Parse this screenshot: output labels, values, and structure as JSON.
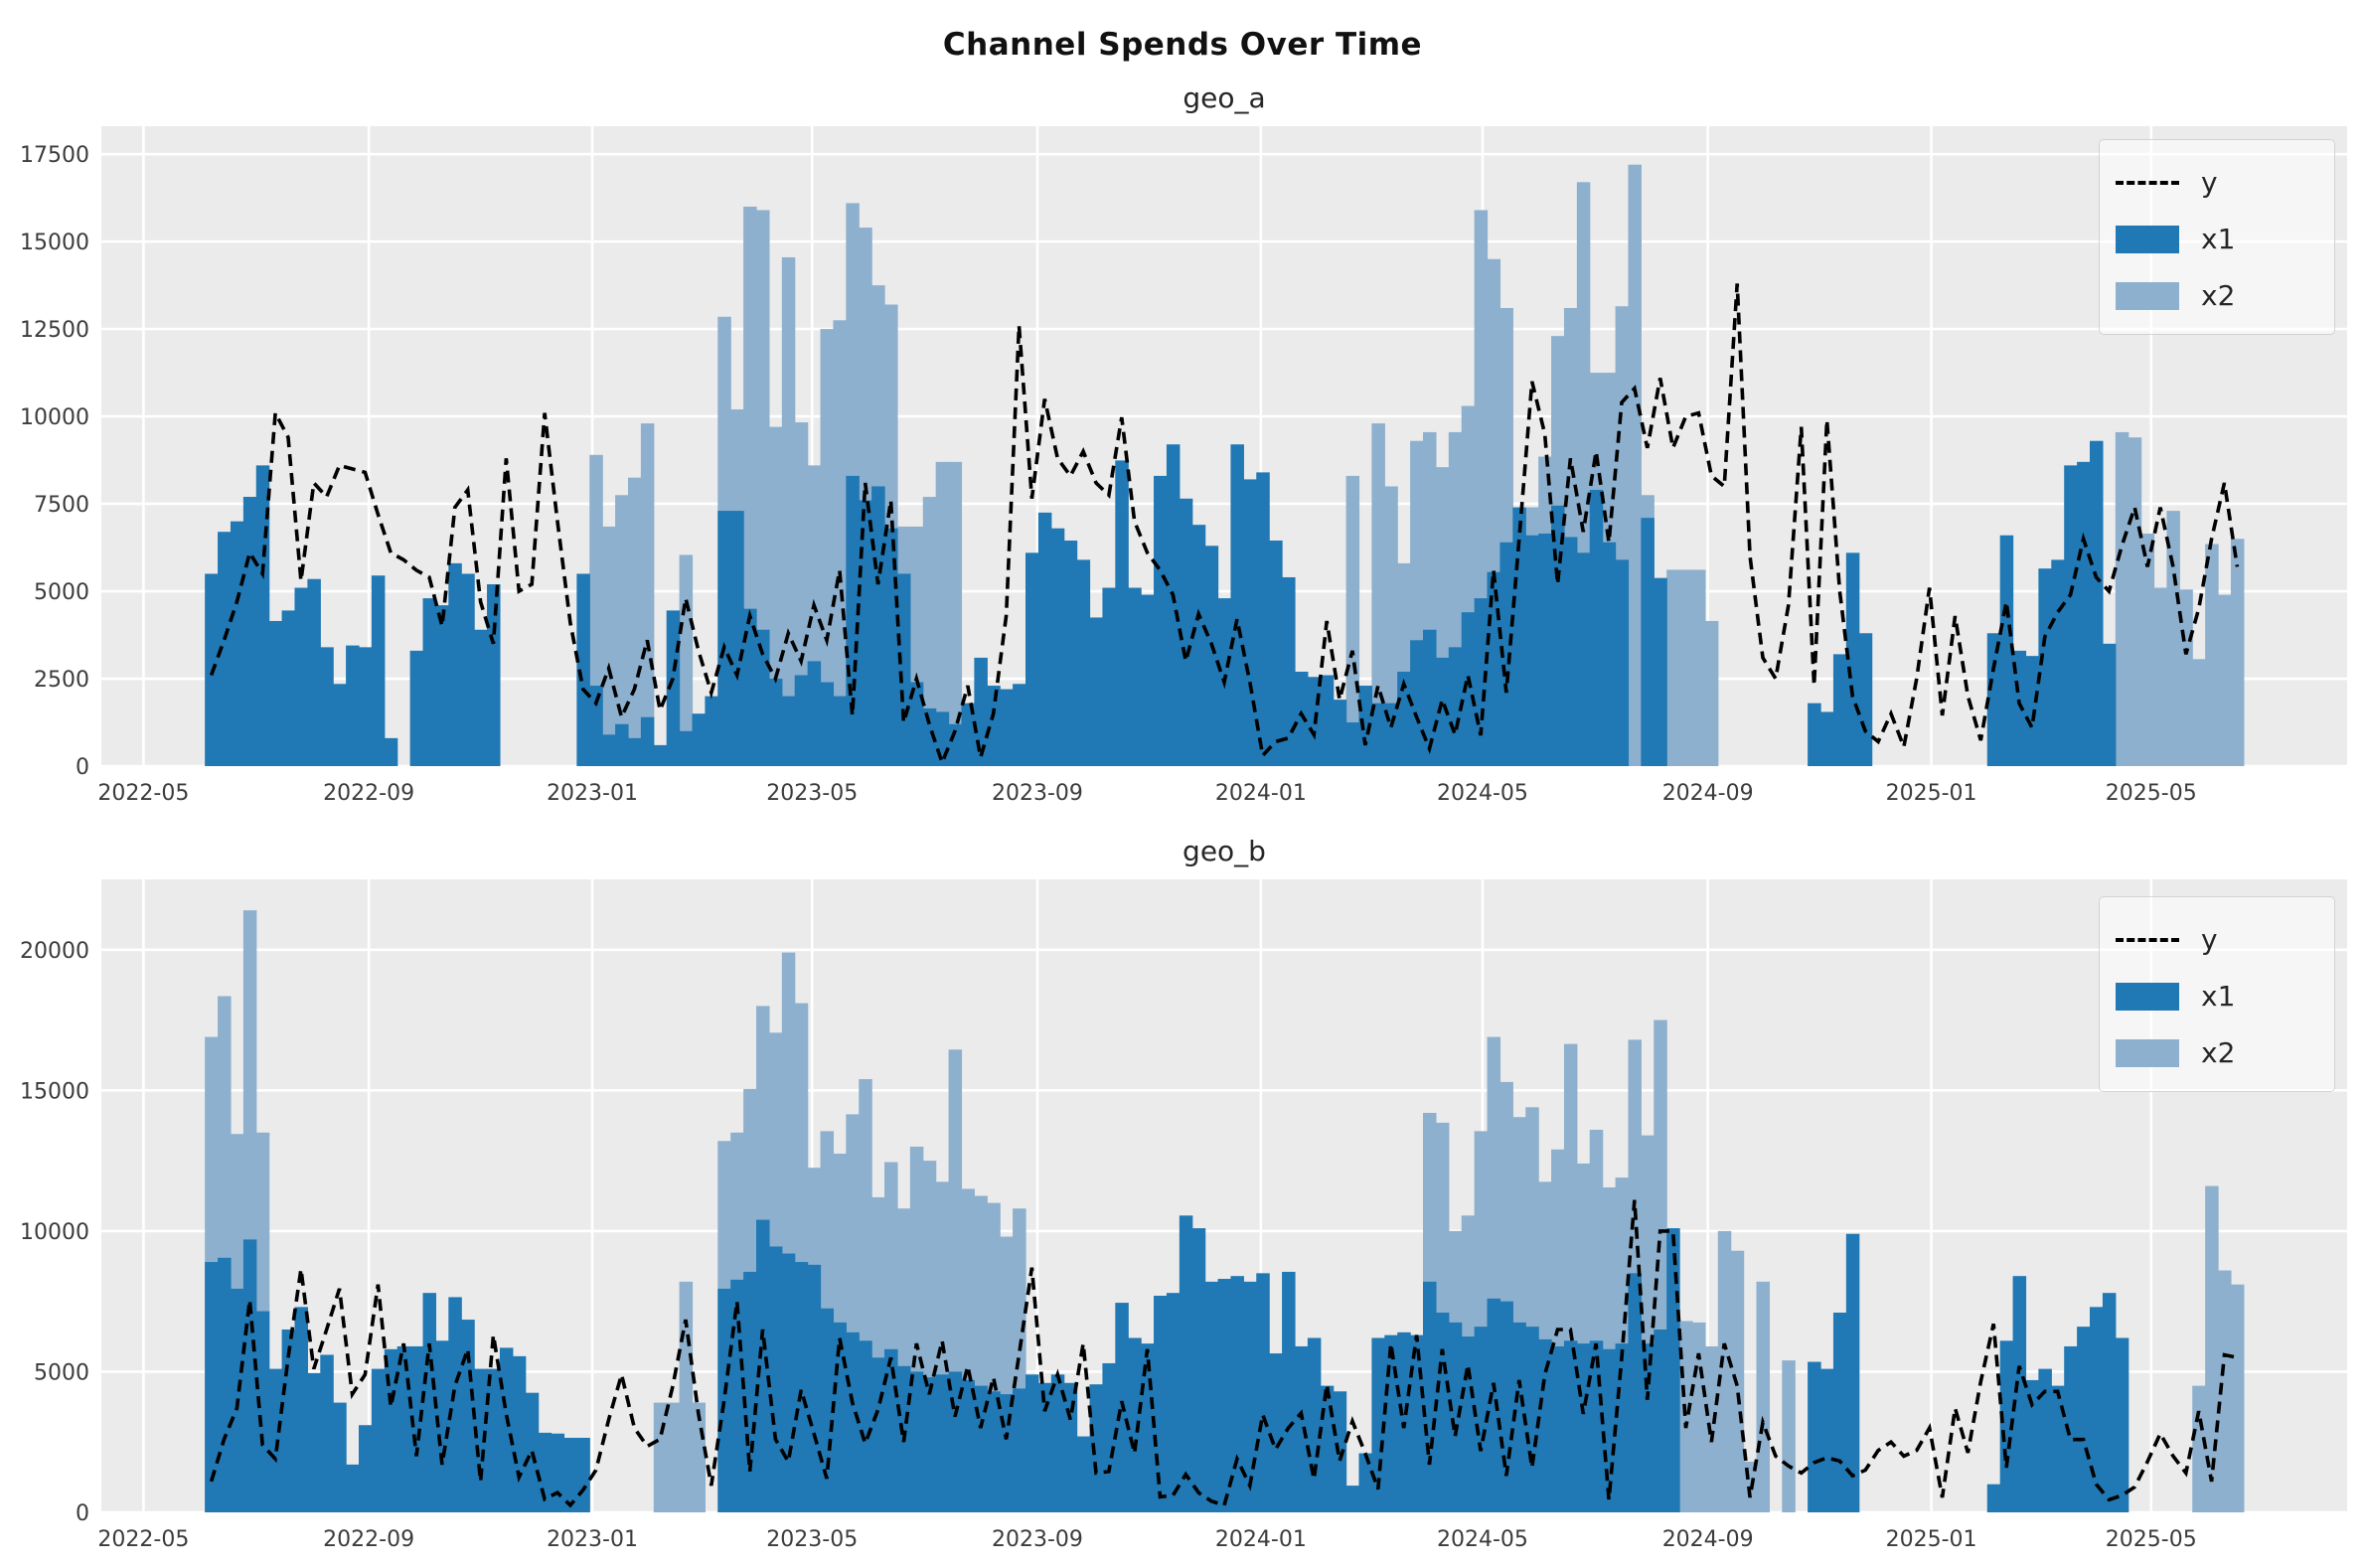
{
  "title": "Channel Spends Over Time",
  "chart_data": [
    {
      "id": "geo_a",
      "type": "bar+line",
      "title": "geo_a",
      "legend": [
        "y",
        "x1",
        "x2"
      ],
      "colors": {
        "x1": "#2078b4",
        "x2": "#8db0ce",
        "y": "#000000",
        "plot_bg": "#ebebeb",
        "grid": "#ffffff",
        "tick_text": "#3c3c3c"
      },
      "ylim": [
        0,
        18300
      ],
      "yticks": [
        0,
        2500,
        5000,
        7500,
        10000,
        12500,
        15000,
        17500
      ],
      "xticks": [
        {
          "label": "2022-05",
          "day": 0
        },
        {
          "label": "2022-09",
          "day": 123
        },
        {
          "label": "2023-01",
          "day": 245
        },
        {
          "label": "2023-05",
          "day": 365
        },
        {
          "label": "2023-09",
          "day": 488
        },
        {
          "label": "2024-01",
          "day": 610
        },
        {
          "label": "2024-05",
          "day": 731
        },
        {
          "label": "2024-09",
          "day": 854
        },
        {
          "label": "2025-01",
          "day": 976
        },
        {
          "label": "2025-05",
          "day": 1096
        }
      ],
      "x_domain_days": [
        -23,
        1203
      ],
      "week0_day": 33.5,
      "week_days": 7,
      "series": {
        "x1": [
          5500,
          6700,
          7000,
          7700,
          8600,
          4150,
          4450,
          5100,
          5350,
          3400,
          2350,
          3450,
          3400,
          5450,
          800,
          0,
          3300,
          4800,
          4600,
          5800,
          5500,
          3900,
          5200,
          0,
          0,
          0,
          0,
          0,
          0,
          5500,
          2300,
          900,
          1200,
          800,
          1400,
          600,
          4450,
          1000,
          1500,
          2000,
          7300,
          7300,
          4500,
          3900,
          2500,
          2000,
          2600,
          3000,
          2400,
          2000,
          8300,
          7600,
          8000,
          6800,
          5500,
          2400,
          1650,
          1550,
          1200,
          1800,
          3100,
          2300,
          2200,
          2350,
          6100,
          7250,
          6800,
          6450,
          5900,
          4250,
          5100,
          8740,
          5100,
          4900,
          8300,
          9200,
          7650,
          6900,
          6300,
          4800,
          9200,
          8200,
          8400,
          6450,
          5400,
          2700,
          2550,
          2600,
          1900,
          1250,
          2300,
          1800,
          1800,
          2700,
          3600,
          3900,
          3100,
          3400,
          4400,
          4800,
          5550,
          6400,
          7400,
          6600,
          6650,
          7450,
          6550,
          6100,
          7900,
          6400,
          5900,
          0,
          7100,
          5380,
          0,
          0,
          0,
          0,
          0,
          0,
          0,
          0,
          0,
          0,
          0,
          1800,
          1550,
          3200,
          6100,
          3800,
          0,
          0,
          0,
          0,
          0,
          0,
          0,
          0,
          0,
          3800,
          6600,
          3300,
          3150,
          5650,
          5900,
          8600,
          8700,
          9300,
          3500,
          0,
          0,
          0,
          0,
          0,
          0,
          0,
          0,
          0,
          0
        ],
        "x2": [
          0,
          0,
          0,
          0,
          0,
          0,
          0,
          0,
          0,
          0,
          0,
          0,
          0,
          0,
          0,
          0,
          0,
          0,
          0,
          0,
          0,
          0,
          0,
          0,
          0,
          0,
          0,
          0,
          0,
          0,
          8900,
          6850,
          7750,
          8250,
          9800,
          0,
          0,
          6040,
          0,
          0,
          12850,
          10200,
          16000,
          15900,
          9700,
          14550,
          9830,
          8600,
          12500,
          12750,
          16100,
          15400,
          13750,
          13200,
          6850,
          6850,
          7700,
          8700,
          8700,
          0,
          0,
          0,
          0,
          0,
          0,
          0,
          0,
          0,
          0,
          0,
          0,
          0,
          0,
          0,
          0,
          0,
          0,
          0,
          0,
          0,
          0,
          0,
          0,
          0,
          0,
          0,
          0,
          0,
          0,
          8300,
          0,
          9800,
          8000,
          5800,
          9300,
          9550,
          8550,
          9550,
          10300,
          15900,
          14500,
          13100,
          0,
          7400,
          8850,
          12300,
          13100,
          16700,
          11250,
          11250,
          13150,
          17200,
          7750,
          0,
          5615,
          5615,
          5615,
          4150,
          0,
          0,
          0,
          0,
          0,
          0,
          0,
          0,
          0,
          0,
          0,
          0,
          0,
          0,
          0,
          0,
          0,
          0,
          0,
          0,
          0,
          0,
          0,
          0,
          0,
          0,
          0,
          0,
          0,
          0,
          0,
          9550,
          9400,
          6650,
          5100,
          7300,
          5050,
          3060,
          6350,
          4900,
          6500
        ],
        "y": [
          2600,
          3600,
          4700,
          6100,
          5500,
          10100,
          9400,
          5300,
          8100,
          7700,
          8600,
          8500,
          8400,
          7200,
          6100,
          5900,
          5600,
          5400,
          4000,
          7400,
          7900,
          4700,
          3500,
          8800,
          5000,
          5200,
          10100,
          7000,
          4100,
          2200,
          1800,
          2800,
          1400,
          2200,
          3600,
          1600,
          2500,
          4800,
          3300,
          2100,
          3400,
          2600,
          4300,
          3200,
          2500,
          3800,
          3000,
          4600,
          3600,
          5600,
          1450,
          8100,
          5200,
          7600,
          1250,
          2500,
          1200,
          100,
          1000,
          2300,
          250,
          1500,
          4300,
          12600,
          7650,
          10500,
          8800,
          8300,
          9000,
          8100,
          7750,
          9970,
          7000,
          6100,
          5600,
          4900,
          3000,
          4350,
          3500,
          2400,
          4200,
          2400,
          300,
          700,
          800,
          1500,
          900,
          4150,
          1900,
          3300,
          600,
          2300,
          1100,
          2350,
          1400,
          500,
          1900,
          900,
          2600,
          880,
          5600,
          2100,
          6500,
          11000,
          9500,
          5200,
          8800,
          6700,
          9000,
          6400,
          10400,
          10800,
          9100,
          11100,
          9100,
          10000,
          10100,
          8300,
          8000,
          13800,
          6000,
          3100,
          2500,
          4600,
          9700,
          2300,
          9900,
          5000,
          2000,
          1000,
          700,
          1500,
          550,
          2500,
          5100,
          1450,
          4290,
          2000,
          740,
          2800,
          4700,
          1800,
          1100,
          3700,
          4400,
          4900,
          6500,
          5400,
          5000,
          6300,
          7400,
          5700,
          7400,
          5700,
          3200,
          4500,
          6500,
          8100,
          5700
        ]
      }
    },
    {
      "id": "geo_b",
      "type": "bar+line",
      "title": "geo_b",
      "legend": [
        "y",
        "x1",
        "x2"
      ],
      "colors": {
        "x1": "#2078b4",
        "x2": "#8db0ce",
        "y": "#000000",
        "plot_bg": "#ebebeb",
        "grid": "#ffffff",
        "tick_text": "#3c3c3c"
      },
      "ylim": [
        0,
        22500
      ],
      "yticks": [
        0,
        5000,
        10000,
        15000,
        20000
      ],
      "xticks": [
        {
          "label": "2022-05",
          "day": 0
        },
        {
          "label": "2022-09",
          "day": 123
        },
        {
          "label": "2023-01",
          "day": 245
        },
        {
          "label": "2023-05",
          "day": 365
        },
        {
          "label": "2023-09",
          "day": 488
        },
        {
          "label": "2024-01",
          "day": 610
        },
        {
          "label": "2024-05",
          "day": 731
        },
        {
          "label": "2024-09",
          "day": 854
        },
        {
          "label": "2025-01",
          "day": 976
        },
        {
          "label": "2025-05",
          "day": 1096
        }
      ],
      "x_domain_days": [
        -23,
        1203
      ],
      "week0_day": 33.5,
      "week_days": 7,
      "series": {
        "x1": [
          8900,
          9050,
          7950,
          9700,
          7150,
          5100,
          6500,
          7300,
          4950,
          5600,
          3900,
          1700,
          3100,
          5100,
          5800,
          5900,
          5900,
          7800,
          6100,
          7650,
          6850,
          5100,
          5100,
          5850,
          5550,
          4250,
          2830,
          2800,
          2650,
          2650,
          0,
          0,
          0,
          0,
          0,
          0,
          0,
          0,
          0,
          0,
          7950,
          8270,
          8550,
          10400,
          9450,
          9200,
          8900,
          8800,
          7250,
          6750,
          6400,
          6100,
          5500,
          5800,
          5200,
          5000,
          4800,
          4900,
          5000,
          4700,
          4500,
          4300,
          4200,
          4400,
          4900,
          4600,
          4900,
          4600,
          2700,
          4550,
          5300,
          7450,
          6200,
          6000,
          7700,
          7800,
          10550,
          10100,
          8200,
          8300,
          8400,
          8200,
          8500,
          5650,
          8550,
          5900,
          6200,
          4500,
          4300,
          950,
          2100,
          6200,
          6300,
          6400,
          6300,
          8200,
          7100,
          6750,
          6250,
          6600,
          7600,
          7500,
          6750,
          6600,
          6150,
          5900,
          6100,
          6000,
          6100,
          5800,
          6000,
          8500,
          6000,
          6500,
          10100,
          0,
          0,
          0,
          0,
          0,
          0,
          0,
          0,
          0,
          0,
          5350,
          5100,
          7100,
          9900,
          0,
          0,
          0,
          0,
          0,
          0,
          0,
          0,
          0,
          0,
          1000,
          6100,
          8400,
          4700,
          5100,
          4500,
          5900,
          6600,
          7300,
          7800,
          6200,
          0,
          0,
          0,
          0,
          0,
          0,
          0,
          0,
          0
        ],
        "x2": [
          16900,
          18350,
          13450,
          21400,
          13500,
          0,
          0,
          0,
          0,
          0,
          0,
          0,
          0,
          0,
          0,
          0,
          0,
          0,
          0,
          0,
          0,
          0,
          0,
          0,
          0,
          0,
          0,
          0,
          0,
          0,
          0,
          0,
          0,
          0,
          0,
          3900,
          3900,
          8200,
          3900,
          0,
          13200,
          13500,
          15050,
          18000,
          17050,
          19900,
          18100,
          12250,
          13550,
          12750,
          14150,
          15400,
          11200,
          12450,
          10800,
          13000,
          12500,
          11750,
          16450,
          11500,
          11250,
          11000,
          9800,
          10800,
          0,
          0,
          0,
          0,
          0,
          0,
          0,
          0,
          0,
          0,
          0,
          0,
          0,
          0,
          0,
          0,
          0,
          0,
          0,
          0,
          0,
          0,
          0,
          0,
          0,
          0,
          0,
          0,
          0,
          0,
          0,
          14200,
          13850,
          10000,
          10550,
          13550,
          16900,
          15300,
          14050,
          14400,
          11750,
          12900,
          16650,
          12400,
          13600,
          11550,
          11900,
          16800,
          13400,
          17500,
          0,
          6800,
          6750,
          5900,
          10000,
          9300,
          1800,
          8200,
          0,
          5400,
          0,
          0,
          0,
          0,
          0,
          0,
          0,
          0,
          0,
          0,
          0,
          0,
          0,
          0,
          0,
          0,
          0,
          0,
          0,
          0,
          0,
          0,
          0,
          0,
          0,
          0,
          0,
          0,
          0,
          0,
          0,
          4500,
          11600,
          8600,
          8100
        ],
        "y": [
          1100,
          2600,
          3700,
          7550,
          2400,
          1900,
          5500,
          8650,
          5100,
          6500,
          7950,
          4200,
          4900,
          8100,
          3750,
          6000,
          2000,
          6000,
          1700,
          4500,
          5800,
          1100,
          6300,
          3500,
          1250,
          2200,
          470,
          700,
          250,
          800,
          1500,
          3300,
          4900,
          3000,
          2350,
          2600,
          4500,
          6850,
          3500,
          950,
          4000,
          7500,
          1450,
          6500,
          2600,
          1800,
          4350,
          2800,
          1200,
          6200,
          3900,
          2450,
          3650,
          5500,
          2500,
          6000,
          4200,
          6100,
          3400,
          5200,
          3000,
          4800,
          2600,
          5600,
          8700,
          3600,
          4900,
          3300,
          6000,
          1400,
          1450,
          3950,
          2100,
          5800,
          550,
          600,
          1350,
          700,
          400,
          250,
          1900,
          950,
          3475,
          2240,
          3000,
          3530,
          1180,
          4540,
          1825,
          3240,
          2100,
          825,
          6000,
          3000,
          6300,
          1700,
          5800,
          2700,
          5250,
          2180,
          4600,
          1300,
          4700,
          1590,
          4900,
          6500,
          6500,
          3500,
          6000,
          450,
          5500,
          11100,
          4000,
          10000,
          10000,
          3000,
          5650,
          2500,
          6000,
          4500,
          530,
          3200,
          2000,
          1650,
          1400,
          1770,
          1940,
          1825,
          1300,
          1500,
          2200,
          2500,
          2000,
          2200,
          3000,
          530,
          3700,
          2120,
          4650,
          6700,
          1590,
          5200,
          3830,
          4300,
          4300,
          2590,
          2590,
          1000,
          450,
          600,
          900,
          1800,
          2800,
          2000,
          1400,
          3600,
          1100,
          5600,
          5500
        ]
      }
    }
  ]
}
